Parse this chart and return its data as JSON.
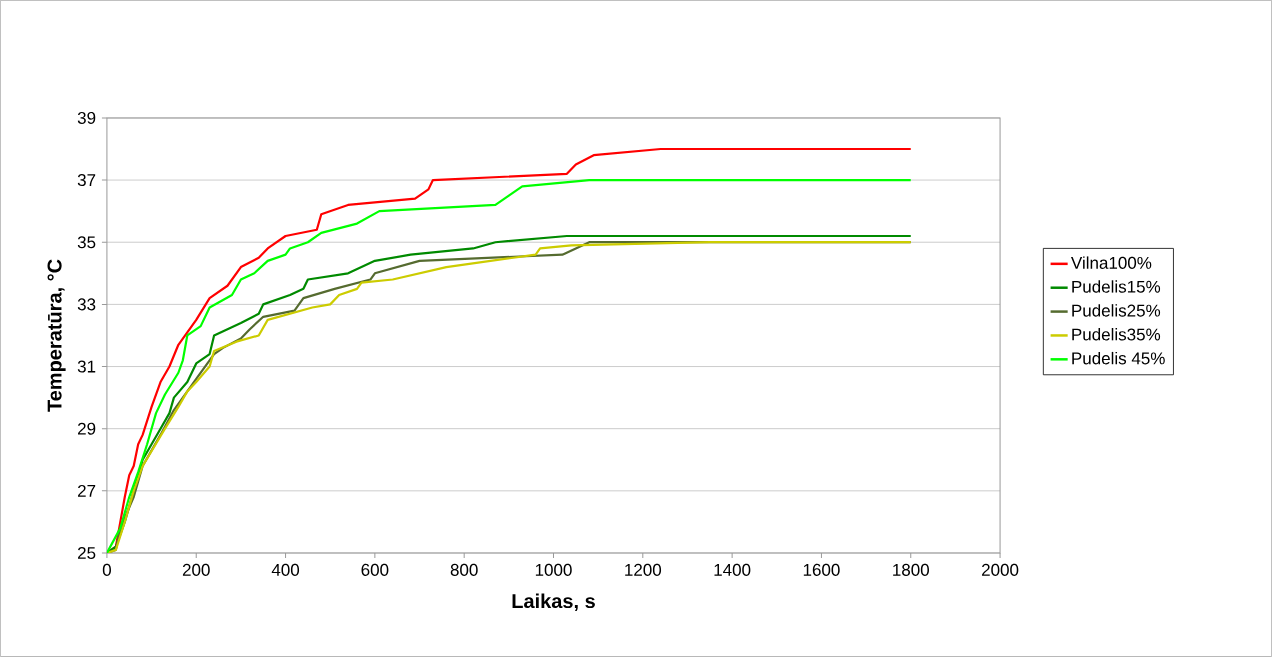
{
  "chart_data": {
    "type": "line",
    "xlabel": "Laikas, s",
    "ylabel": "Temperatūra, °C",
    "xlim": [
      0,
      2000
    ],
    "ylim": [
      25,
      39
    ],
    "xticks": [
      0,
      200,
      400,
      600,
      800,
      1000,
      1200,
      1400,
      1600,
      1800,
      2000
    ],
    "yticks": [
      25,
      27,
      29,
      31,
      33,
      35,
      37,
      39
    ],
    "grid": "y",
    "legend": "right",
    "marker": "none",
    "line_style": "solid",
    "series": [
      {
        "name": "Vilna100%",
        "color": "#ff0000",
        "x": [
          0,
          20,
          30,
          40,
          50,
          60,
          70,
          80,
          100,
          120,
          140,
          160,
          180,
          200,
          230,
          270,
          300,
          340,
          360,
          400,
          470,
          480,
          540,
          690,
          720,
          730,
          1030,
          1050,
          1090,
          1240,
          1800
        ],
        "values": [
          25,
          25.2,
          26,
          26.8,
          27.5,
          27.8,
          28.5,
          28.8,
          29.7,
          30.5,
          31,
          31.7,
          32.1,
          32.5,
          33.2,
          33.6,
          34.2,
          34.5,
          34.8,
          35.2,
          35.4,
          35.9,
          36.2,
          36.4,
          36.7,
          37,
          37.2,
          37.5,
          37.8,
          38,
          38
        ]
      },
      {
        "name": "Pudelis15%",
        "color": "#008a00",
        "x": [
          0,
          20,
          40,
          60,
          80,
          100,
          120,
          140,
          150,
          180,
          200,
          230,
          240,
          300,
          340,
          350,
          410,
          440,
          450,
          540,
          600,
          680,
          820,
          870,
          1030,
          1800
        ],
        "values": [
          25,
          25.2,
          26,
          27,
          28,
          28.5,
          29,
          29.5,
          30,
          30.5,
          31.1,
          31.4,
          32,
          32.4,
          32.7,
          33,
          33.3,
          33.5,
          33.8,
          34,
          34.4,
          34.6,
          34.8,
          35,
          35.2,
          35.2
        ]
      },
      {
        "name": "Pudelis25%",
        "color": "#556b2f",
        "x": [
          0,
          20,
          30,
          60,
          80,
          120,
          150,
          180,
          200,
          240,
          260,
          300,
          320,
          350,
          420,
          440,
          510,
          590,
          600,
          700,
          1020,
          1080,
          1800
        ],
        "values": [
          25,
          25.1,
          25.8,
          26.8,
          27.8,
          28.8,
          29.6,
          30.2,
          30.6,
          31.4,
          31.6,
          31.9,
          32.2,
          32.6,
          32.8,
          33.2,
          33.5,
          33.8,
          34,
          34.4,
          34.6,
          35,
          35
        ]
      },
      {
        "name": "Pudelis35%",
        "color": "#cccc00",
        "x": [
          0,
          20,
          40,
          60,
          80,
          130,
          160,
          180,
          200,
          230,
          240,
          290,
          340,
          360,
          460,
          500,
          520,
          560,
          570,
          640,
          760,
          960,
          970,
          1040,
          1350,
          1800
        ],
        "values": [
          25,
          25.1,
          26,
          27,
          27.8,
          29,
          29.7,
          30.2,
          30.5,
          31,
          31.5,
          31.8,
          32,
          32.5,
          32.9,
          33,
          33.3,
          33.5,
          33.7,
          33.8,
          34.2,
          34.6,
          34.8,
          34.9,
          35,
          35
        ]
      },
      {
        "name": "Pudelis 45%",
        "color": "#00ff00",
        "x": [
          0,
          30,
          50,
          70,
          90,
          110,
          130,
          160,
          170,
          180,
          210,
          230,
          280,
          300,
          330,
          360,
          400,
          410,
          450,
          480,
          560,
          610,
          870,
          900,
          930,
          1080,
          1800
        ],
        "values": [
          25,
          25.8,
          26.8,
          27.6,
          28.5,
          29.5,
          30.1,
          30.8,
          31.2,
          32,
          32.3,
          32.9,
          33.3,
          33.8,
          34,
          34.4,
          34.6,
          34.8,
          35,
          35.3,
          35.6,
          36,
          36.2,
          36.5,
          36.8,
          37,
          37
        ]
      }
    ]
  }
}
